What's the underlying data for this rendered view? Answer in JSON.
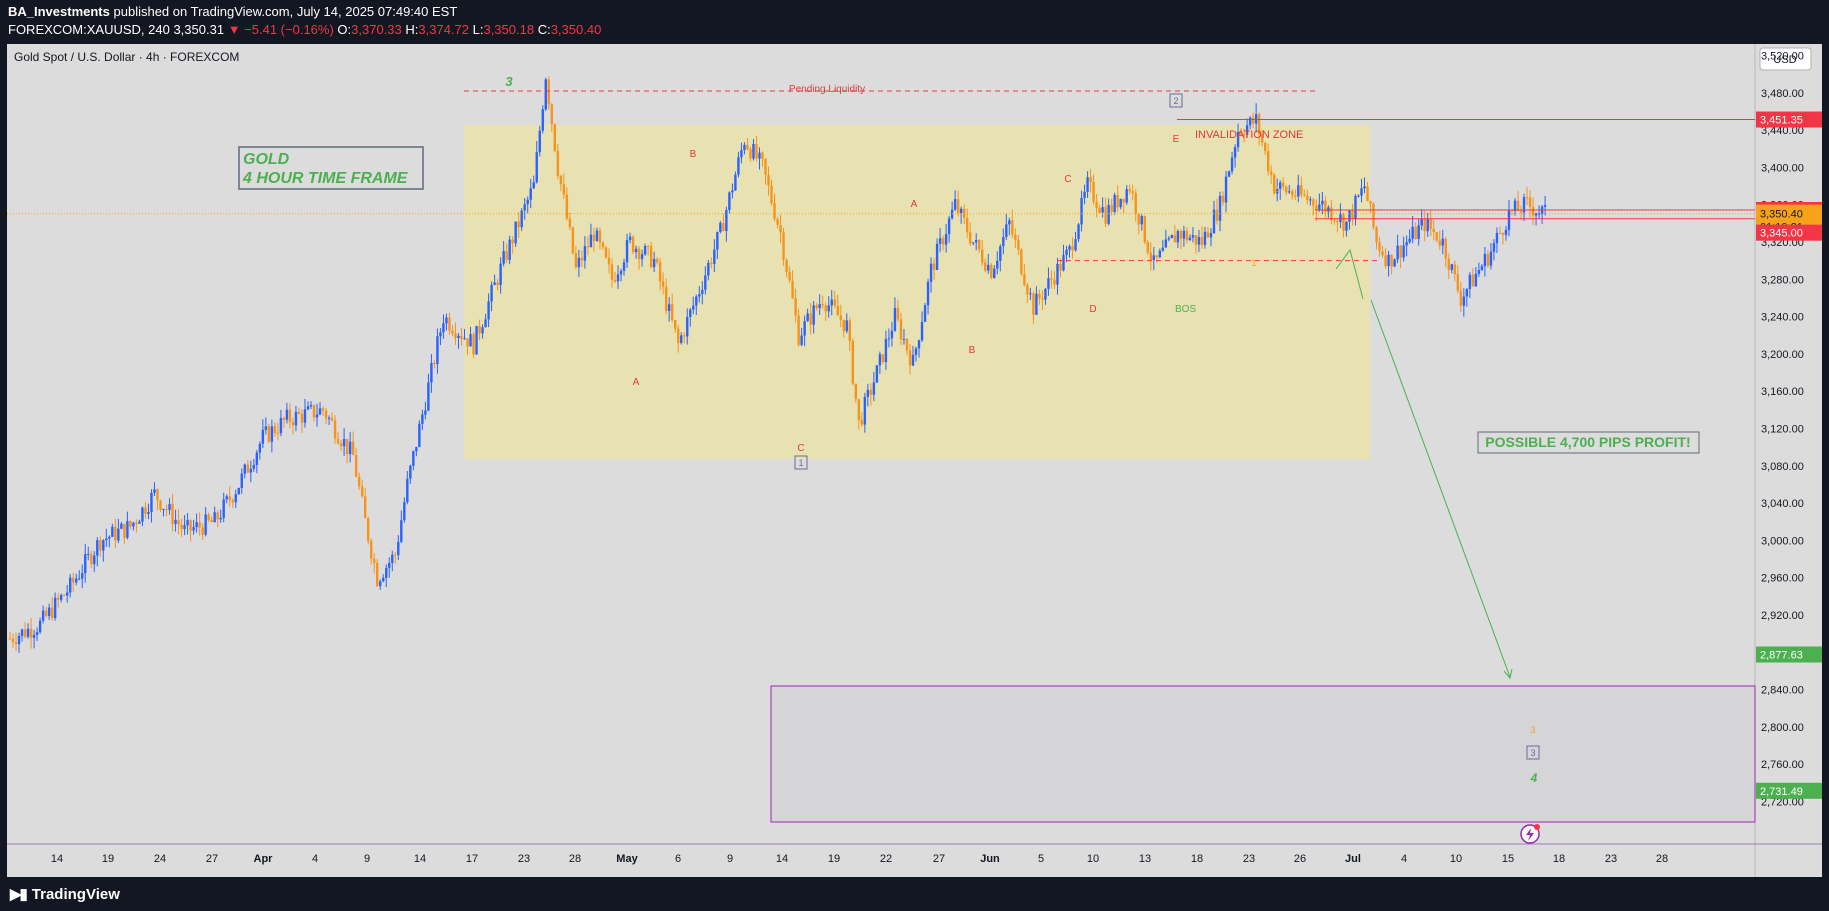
{
  "header": {
    "author": "BA_Investments",
    "published": "published on TradingView.com, July 14, 2025 07:49:40 EST",
    "symbol": "FOREXCOM:XAUUSD, 240",
    "last": "3,350.31",
    "change": "−5.41 (−0.16%)",
    "o_label": "O:",
    "o": "3,370.33",
    "h_label": "H:",
    "h": "3,374.72",
    "l_label": "L:",
    "l": "3,350.18",
    "c_label": "C:",
    "c": "3,350.40"
  },
  "chart_title": "Gold Spot / U.S. Dollar · 4h · FOREXCOM",
  "currency": "USD",
  "footer": {
    "brand": "TradingView"
  },
  "colors": {
    "up": "#2962ff",
    "down": "#f7931a",
    "box": "#e8e2b2",
    "red": "#f23645",
    "green": "#4caf50",
    "orange": "#f7a21b",
    "purple": "#9c27b0"
  },
  "chart_data": {
    "type": "candlestick",
    "ylim": [
      2700,
      3550
    ],
    "y_ticks": [
      2720,
      2760,
      2800,
      2840,
      2880,
      2920,
      2960,
      3000,
      3040,
      3080,
      3120,
      3160,
      3200,
      3240,
      3280,
      3320,
      3360,
      3400,
      3440,
      3480,
      3520
    ],
    "y_tick_labels": [
      "2,720.00",
      "2,760.00",
      "2,800.00",
      "2,840.00",
      "2,880.00",
      "2,920.00",
      "2,960.00",
      "3,000.00",
      "3,040.00",
      "3,080.00",
      "3,120.00",
      "3,160.00",
      "3,200.00",
      "3,240.00",
      "3,280.00",
      "3,320.00",
      "3,360.00",
      "3,400.00",
      "3,440.00",
      "3,480.00",
      "3,520.00"
    ],
    "x_labels": [
      "14",
      "19",
      "24",
      "27",
      "Apr",
      "4",
      "9",
      "14",
      "17",
      "23",
      "28",
      "May",
      "6",
      "9",
      "14",
      "19",
      "22",
      "27",
      "Jun",
      "5",
      "10",
      "13",
      "18",
      "23",
      "26",
      "Jul",
      "4",
      "10",
      "15",
      "18",
      "23",
      "28"
    ],
    "x_label_bold": [
      "Apr",
      "May",
      "Jun",
      "Jul"
    ],
    "price_path": [
      [
        0,
        2895
      ],
      [
        5,
        2910
      ],
      [
        10,
        2950
      ],
      [
        15,
        3000
      ],
      [
        20,
        3015
      ],
      [
        24,
        3050
      ],
      [
        29,
        3010
      ],
      [
        34,
        3020
      ],
      [
        38,
        3060
      ],
      [
        42,
        3110
      ],
      [
        46,
        3130
      ],
      [
        52,
        3140
      ],
      [
        57,
        3090
      ],
      [
        59,
        3020
      ],
      [
        61,
        2960
      ],
      [
        64,
        2985
      ],
      [
        66,
        3060
      ],
      [
        69,
        3150
      ],
      [
        72,
        3240
      ],
      [
        77,
        3210
      ],
      [
        82,
        3300
      ],
      [
        87,
        3380
      ],
      [
        89,
        3500
      ],
      [
        91,
        3400
      ],
      [
        94,
        3290
      ],
      [
        97,
        3330
      ],
      [
        100,
        3280
      ],
      [
        103,
        3320
      ],
      [
        107,
        3300
      ],
      [
        111,
        3210
      ],
      [
        114,
        3260
      ],
      [
        118,
        3330
      ],
      [
        122,
        3430
      ],
      [
        125,
        3400
      ],
      [
        128,
        3330
      ],
      [
        131,
        3220
      ],
      [
        135,
        3260
      ],
      [
        139,
        3230
      ],
      [
        141,
        3125
      ],
      [
        144,
        3180
      ],
      [
        147,
        3240
      ],
      [
        150,
        3190
      ],
      [
        153,
        3290
      ],
      [
        157,
        3360
      ],
      [
        160,
        3320
      ],
      [
        163,
        3290
      ],
      [
        166,
        3340
      ],
      [
        170,
        3250
      ],
      [
        173,
        3280
      ],
      [
        176,
        3310
      ],
      [
        179,
        3380
      ],
      [
        182,
        3350
      ],
      [
        186,
        3380
      ],
      [
        190,
        3295
      ],
      [
        194,
        3330
      ],
      [
        198,
        3320
      ],
      [
        201,
        3360
      ],
      [
        204,
        3440
      ],
      [
        207,
        3450
      ],
      [
        210,
        3380
      ],
      [
        214,
        3370
      ],
      [
        218,
        3360
      ],
      [
        222,
        3340
      ],
      [
        225,
        3380
      ],
      [
        227,
        3320
      ],
      [
        229,
        3300
      ],
      [
        232,
        3320
      ],
      [
        235,
        3340
      ],
      [
        238,
        3320
      ],
      [
        241,
        3260
      ],
      [
        243,
        3280
      ],
      [
        246,
        3310
      ],
      [
        249,
        3350
      ],
      [
        252,
        3360
      ],
      [
        255,
        3350
      ],
      [
        258,
        3330
      ],
      [
        261,
        3320
      ],
      [
        263,
        3340
      ],
      [
        266,
        3310
      ],
      [
        268,
        3285
      ],
      [
        271,
        3300
      ],
      [
        274,
        3330
      ],
      [
        277,
        3350
      ],
      [
        280,
        3365
      ],
      [
        282,
        3355
      ]
    ],
    "price_labels": [
      {
        "value": 3451.35,
        "label": "3,451.35",
        "color": "#f23645"
      },
      {
        "value": 3354.34,
        "label": "3,354.34",
        "color": "#f23645"
      },
      {
        "value": 3350.4,
        "label": "3,350.40",
        "color": "#f7a21b"
      },
      {
        "value": 3345.0,
        "label": "3,345.00",
        "color": "#f23645"
      },
      {
        "value": 2877.63,
        "label": "2,877.63",
        "color": "#4caf50"
      },
      {
        "value": 2731.49,
        "label": "2,731.49",
        "color": "#4caf50"
      }
    ],
    "countdown": "01:10:21",
    "annotations": {
      "gold_label_1": "GOLD",
      "gold_label_2": "4 HOUR TIME FRAME",
      "pending_liquidity": "Pending Liquidity",
      "invalidation_zone": "INVALIDATION ZONE",
      "bos": "BOS",
      "possible_profit": "POSSIBLE 4,700 PIPS PROFIT!",
      "wave_3_top": "3",
      "wave_B1": "B",
      "wave_A1": "A",
      "wave_C1": "C",
      "box_1": "1",
      "wave_A2": "A",
      "wave_B2": "B",
      "wave_C2": "C",
      "wave_D2": "D",
      "wave_E2": "E",
      "box_2": "2",
      "sub_1": "1",
      "sub_2": "2",
      "target_3_orange": "3",
      "box_3": "3",
      "wave_4": "4"
    }
  }
}
